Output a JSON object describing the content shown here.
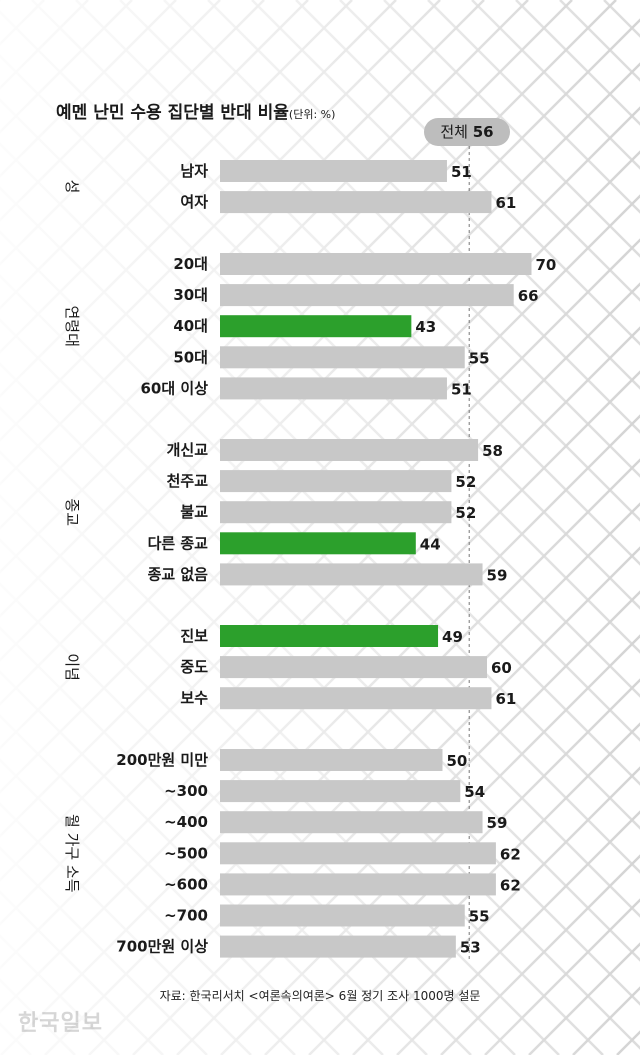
{
  "title": "예멘 난민 수용 집단별 반대 비율",
  "unit": "(단위: %)",
  "overall": {
    "label": "전체",
    "value": "56"
  },
  "source": "자료: 한국리서치 <여론속의여론> 6월 정기 조사 1000명 설문",
  "brand": "한국일보",
  "colors": {
    "bar": "#c8c8c8",
    "highlight": "#2ca02c",
    "text": "#1a1a1a",
    "pill": "#bdbdbd"
  },
  "chart_data": {
    "type": "bar",
    "orientation": "horizontal",
    "xlim": [
      0,
      70
    ],
    "reference_line": 56,
    "groups": [
      {
        "name": "성",
        "items": [
          {
            "label": "남자",
            "value": 51,
            "highlight": false
          },
          {
            "label": "여자",
            "value": 61,
            "highlight": false
          }
        ]
      },
      {
        "name": "연령대",
        "items": [
          {
            "label": "20대",
            "value": 70,
            "highlight": false
          },
          {
            "label": "30대",
            "value": 66,
            "highlight": false
          },
          {
            "label": "40대",
            "value": 43,
            "highlight": true
          },
          {
            "label": "50대",
            "value": 55,
            "highlight": false
          },
          {
            "label": "60대 이상",
            "value": 51,
            "highlight": false
          }
        ]
      },
      {
        "name": "종교",
        "items": [
          {
            "label": "개신교",
            "value": 58,
            "highlight": false
          },
          {
            "label": "천주교",
            "value": 52,
            "highlight": false
          },
          {
            "label": "불교",
            "value": 52,
            "highlight": false
          },
          {
            "label": "다른 종교",
            "value": 44,
            "highlight": true
          },
          {
            "label": "종교 없음",
            "value": 59,
            "highlight": false
          }
        ]
      },
      {
        "name": "이념",
        "items": [
          {
            "label": "진보",
            "value": 49,
            "highlight": true
          },
          {
            "label": "중도",
            "value": 60,
            "highlight": false
          },
          {
            "label": "보수",
            "value": 61,
            "highlight": false
          }
        ]
      },
      {
        "name": "월 가구 소득",
        "items": [
          {
            "label": "200만원 미만",
            "value": 50,
            "highlight": false
          },
          {
            "label": "~300",
            "value": 54,
            "highlight": false
          },
          {
            "label": "~400",
            "value": 59,
            "highlight": false
          },
          {
            "label": "~500",
            "value": 62,
            "highlight": false
          },
          {
            "label": "~600",
            "value": 62,
            "highlight": false
          },
          {
            "label": "~700",
            "value": 55,
            "highlight": false
          },
          {
            "label": "700만원 이상",
            "value": 53,
            "highlight": false
          }
        ]
      }
    ]
  }
}
